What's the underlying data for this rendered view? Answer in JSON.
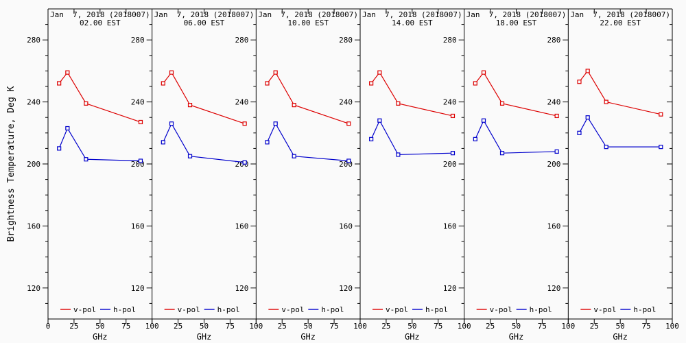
{
  "figure": {
    "background": "#fafafa",
    "axis_color": "#000000"
  },
  "chart_data": {
    "type": "line",
    "layout": "small-multiples-6-panels",
    "title_line1": "Jan  7, 2018 (2018007)",
    "ylabel": "Brightness Temperature, Deg K",
    "xlabel": "GHz",
    "x": [
      10.65,
      18.7,
      36.5,
      89
    ],
    "xlim": [
      0,
      100
    ],
    "ylim": [
      100,
      300
    ],
    "y_minor_step": 10,
    "grid": false,
    "xticks": [
      {
        "value": 0,
        "label": "0"
      },
      {
        "value": 25,
        "label": "25"
      },
      {
        "value": 50,
        "label": "50"
      },
      {
        "value": 75,
        "label": "75"
      },
      {
        "value": 100,
        "label": "100"
      }
    ],
    "yticks": [
      {
        "value": 120,
        "label": "120"
      },
      {
        "value": 160,
        "label": "160"
      },
      {
        "value": 200,
        "label": "200"
      },
      {
        "value": 240,
        "label": "240"
      },
      {
        "value": 280,
        "label": "280"
      }
    ],
    "legend": [
      {
        "label": "v-pol",
        "color": "#dd0000"
      },
      {
        "label": "h-pol",
        "color": "#0000cc"
      }
    ],
    "panels": [
      {
        "title_line1": "Jan  7, 2018 (2018007)",
        "title_line2": "02.00 EST",
        "series": [
          {
            "name": "v-pol",
            "color": "#dd0000",
            "values": [
              252,
              259,
              239,
              227
            ]
          },
          {
            "name": "h-pol",
            "color": "#0000cc",
            "values": [
              210,
              223,
              203,
              202
            ]
          }
        ]
      },
      {
        "title_line1": "Jan  7, 2018 (2018007)",
        "title_line2": "06.00 EST",
        "series": [
          {
            "name": "v-pol",
            "color": "#dd0000",
            "values": [
              252,
              259,
              238,
              226
            ]
          },
          {
            "name": "h-pol",
            "color": "#0000cc",
            "values": [
              214,
              226,
              205,
              201
            ]
          }
        ]
      },
      {
        "title_line1": "Jan  7, 2018 (2018007)",
        "title_line2": "10.00 EST",
        "series": [
          {
            "name": "v-pol",
            "color": "#dd0000",
            "values": [
              252,
              259,
              238,
              226
            ]
          },
          {
            "name": "h-pol",
            "color": "#0000cc",
            "values": [
              214,
              226,
              205,
              202
            ]
          }
        ]
      },
      {
        "title_line1": "Jan  7, 2018 (2018007)",
        "title_line2": "14.00 EST",
        "series": [
          {
            "name": "v-pol",
            "color": "#dd0000",
            "values": [
              252,
              259,
              239,
              231
            ]
          },
          {
            "name": "h-pol",
            "color": "#0000cc",
            "values": [
              216,
              228,
              206,
              207
            ]
          }
        ]
      },
      {
        "title_line1": "Jan  7, 2018 (2018007)",
        "title_line2": "18.00 EST",
        "series": [
          {
            "name": "v-pol",
            "color": "#dd0000",
            "values": [
              252,
              259,
              239,
              231
            ]
          },
          {
            "name": "h-pol",
            "color": "#0000cc",
            "values": [
              216,
              228,
              207,
              208
            ]
          }
        ]
      },
      {
        "title_line1": "Jan  7, 2018 (2018007)",
        "title_line2": "22.00 EST",
        "series": [
          {
            "name": "v-pol",
            "color": "#dd0000",
            "values": [
              253,
              260,
              240,
              232
            ]
          },
          {
            "name": "h-pol",
            "color": "#0000cc",
            "values": [
              220,
              230,
              211,
              211
            ]
          }
        ]
      }
    ]
  }
}
